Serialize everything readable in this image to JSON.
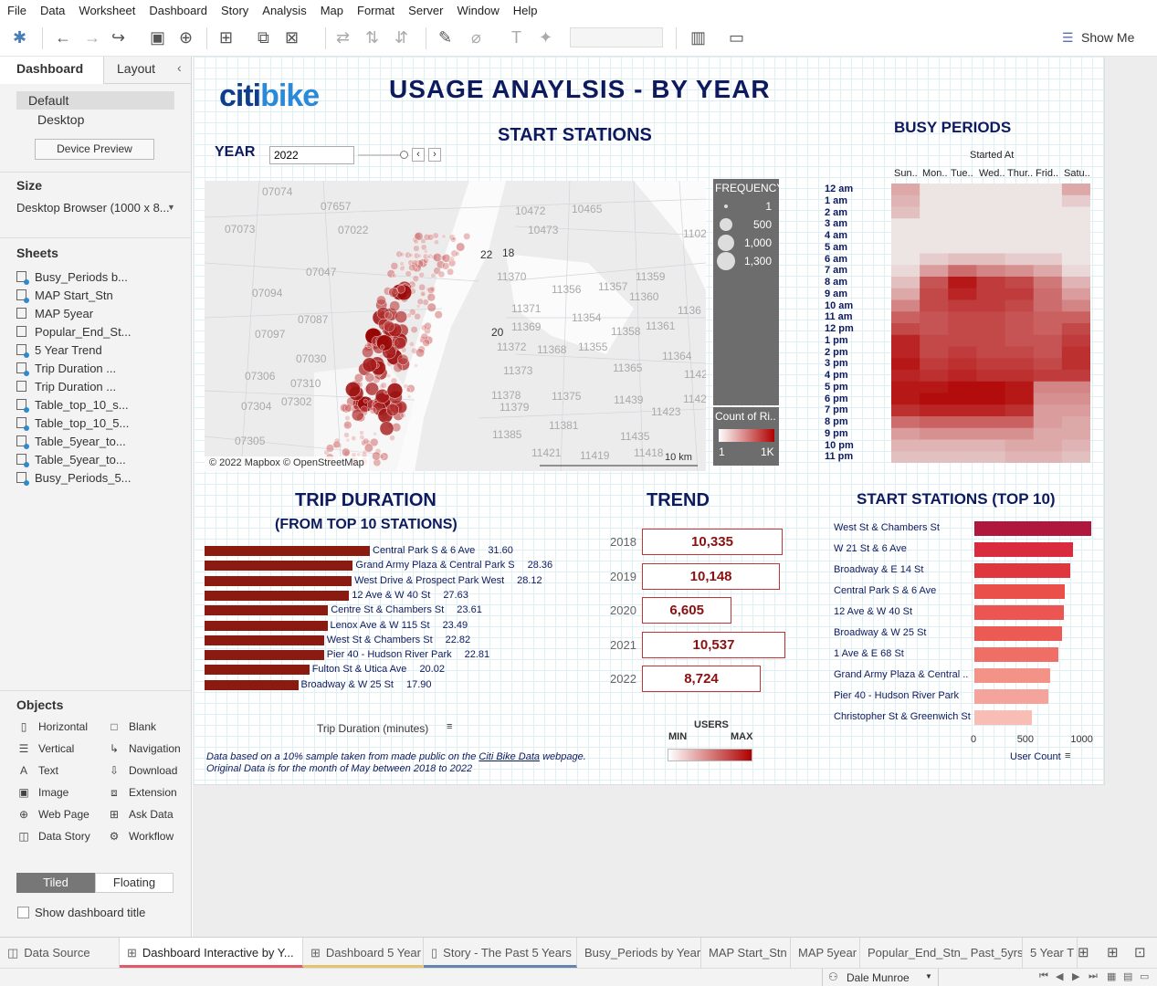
{
  "menu": [
    "File",
    "Data",
    "Worksheet",
    "Dashboard",
    "Story",
    "Analysis",
    "Map",
    "Format",
    "Server",
    "Window",
    "Help"
  ],
  "toolbar": {
    "show_me": "Show Me"
  },
  "left": {
    "tab_dashboard": "Dashboard",
    "tab_layout": "Layout",
    "device_default": "Default",
    "device_desktop": "Desktop",
    "device_preview": "Device Preview",
    "size_title": "Size",
    "size_value": "Desktop Browser (1000 x 8...",
    "sheets_title": "Sheets",
    "sheets": [
      "Busy_Periods b...",
      "MAP Start_Stn",
      "MAP 5year",
      "Popular_End_St...",
      "5 Year Trend",
      "Trip Duration ...",
      "Trip Duration ...",
      "Table_top_10_s...",
      "Table_top_10_5...",
      "Table_5year_to...",
      "Table_5year_to...",
      "Busy_Periods_5..."
    ],
    "objects_title": "Objects",
    "objects": [
      "Horizontal",
      "Blank",
      "Vertical",
      "Navigation",
      "Text",
      "Download",
      "Image",
      "Extension",
      "Web Page",
      "Ask Data",
      "Data Story",
      "Workflow"
    ],
    "tiled": "Tiled",
    "floating": "Floating",
    "show_title": "Show dashboard title"
  },
  "dashboard": {
    "logo_a": "citi",
    "logo_b": "bike",
    "title": "USAGE ANAYLSIS - BY YEAR",
    "start_stations": "START STATIONS",
    "year_label": "YEAR",
    "year_value": "2022",
    "busy_title": "BUSY PERIODS",
    "started_at": "Started At",
    "days": [
      "Sun..",
      "Mon..",
      "Tue..",
      "Wed..",
      "Thur..",
      "Frid..",
      "Satu.."
    ],
    "hours": [
      "12 am",
      "1 am",
      "2 am",
      "3 am",
      "4 am",
      "5 am",
      "6 am",
      "7 am",
      "8 am",
      "9 am",
      "10 am",
      "11 am",
      "12 pm",
      "1 pm",
      "2 pm",
      "3 pm",
      "4 pm",
      "5 pm",
      "6 pm",
      "7 pm",
      "8 pm",
      "9 pm",
      "10 pm",
      "11 pm"
    ],
    "map_credit": "© 2022 Mapbox © OpenStreetMap",
    "map_scale": "10 km",
    "map_labels": [
      "07074",
      "07657",
      "10472",
      "10465",
      "07073",
      "07022",
      "10473",
      "1102",
      "22",
      "18",
      "11370",
      "07047",
      "11359",
      "11356",
      "11357",
      "07094",
      "11371",
      "11360",
      "07087",
      "11354",
      "1136",
      "11369",
      "11361",
      "07097",
      "20",
      "11368",
      "11355",
      "11358",
      "07030",
      "11372",
      "11364",
      "11373",
      "11365",
      "07306",
      "07310",
      "11378",
      "11375",
      "1142",
      "07304",
      "07302",
      "11379",
      "11439",
      "1142",
      "11423",
      "11385",
      "11381",
      "11435",
      "07305",
      "11421",
      "11419",
      "11418"
    ],
    "freq_title": "FREQUENCY",
    "freq_items": [
      "1",
      "500",
      "1,000",
      "1,300"
    ],
    "count_title": "Count of Ri..",
    "count_min": "1",
    "count_max": "1K",
    "trip_title": "TRIP DURATION",
    "trip_sub": "(FROM TOP 10 STATIONS)",
    "trip_axis": "Trip Duration  (minutes)",
    "trend_title": "TREND",
    "users": "USERS",
    "min": "MIN",
    "max": "MAX",
    "top10_title": "START STATIONS (TOP 10)",
    "top10_axis": "User Count",
    "top10_ticks": [
      "0",
      "500",
      "1000"
    ],
    "note1_a": "Data based on a 10% sample taken from made public on the ",
    "note1_link": "Citi Bike Data",
    "note1_b": " webpage.",
    "note2": "Original Data is for the month of May between 2018 to 2022"
  },
  "chart_data": [
    {
      "type": "bar",
      "title": "TRIP DURATION",
      "subtitle": "(FROM TOP 10 STATIONS)",
      "xlabel": "Trip Duration  (minutes)",
      "categories": [
        "Central Park S & 6 Ave",
        "Grand Army Plaza & Central Park S",
        "West Drive & Prospect Park West",
        "12 Ave & W 40 St",
        "Centre St & Chambers St",
        "Lenox Ave & W 115 St",
        "West St & Chambers St",
        "Pier 40 - Hudson River Park",
        "Fulton St & Utica Ave",
        "Broadway & W 25 St"
      ],
      "values": [
        31.6,
        28.36,
        28.12,
        27.63,
        23.61,
        23.49,
        22.82,
        22.81,
        20.02,
        17.9
      ],
      "value_labels": [
        "31.60",
        "28.36",
        "28.12",
        "27.63",
        "23.61",
        "23.49",
        "22.82",
        "22.81",
        "20.02",
        "17.90"
      ]
    },
    {
      "type": "table",
      "title": "TREND",
      "categories": [
        "2018",
        "2019",
        "2020",
        "2021",
        "2022"
      ],
      "values": [
        10335,
        10148,
        6605,
        10537,
        8724
      ],
      "value_labels": [
        "10,335",
        "10,148",
        "6,605",
        "10,537",
        "8,724"
      ]
    },
    {
      "type": "bar",
      "title": "START STATIONS (TOP 10)",
      "xlabel": "User Count",
      "xlim": [
        0,
        1100
      ],
      "categories": [
        "West St & Chambers St",
        "W 21 St & 6 Ave",
        "Broadway & E 14 St",
        "Central Park S & 6 Ave",
        "12 Ave & W 40 St",
        "Broadway & W 25 St",
        "1 Ave & E 68 St",
        "Grand Army Plaza & Central ..",
        "Pier 40 - Hudson River Park",
        "Christopher St & Greenwich St"
      ],
      "values": [
        1090,
        920,
        890,
        840,
        830,
        820,
        780,
        710,
        690,
        540
      ]
    },
    {
      "type": "heatmap",
      "title": "BUSY PERIODS",
      "xlabel": "Started At",
      "x": [
        "Sun..",
        "Mon..",
        "Tue..",
        "Wed..",
        "Thur..",
        "Frid..",
        "Satu.."
      ],
      "y": [
        "12 am",
        "1 am",
        "2 am",
        "3 am",
        "4 am",
        "5 am",
        "6 am",
        "7 am",
        "8 am",
        "9 am",
        "10 am",
        "11 am",
        "12 pm",
        "1 pm",
        "2 pm",
        "3 pm",
        "4 pm",
        "5 pm",
        "6 pm",
        "7 pm",
        "8 pm",
        "9 pm",
        "10 pm",
        "11 pm"
      ],
      "values": [
        [
          0.3,
          0.05,
          0.05,
          0.05,
          0.05,
          0.05,
          0.3
        ],
        [
          0.25,
          0.05,
          0.05,
          0.05,
          0.05,
          0.05,
          0.15
        ],
        [
          0.2,
          0.05,
          0.05,
          0.05,
          0.05,
          0.05,
          0.05
        ],
        [
          0.05,
          0.05,
          0.05,
          0.05,
          0.05,
          0.05,
          0.05
        ],
        [
          0.05,
          0.05,
          0.05,
          0.05,
          0.05,
          0.05,
          0.05
        ],
        [
          0.05,
          0.05,
          0.05,
          0.05,
          0.05,
          0.05,
          0.05
        ],
        [
          0.05,
          0.15,
          0.2,
          0.2,
          0.15,
          0.15,
          0.05
        ],
        [
          0.1,
          0.35,
          0.55,
          0.45,
          0.4,
          0.3,
          0.1
        ],
        [
          0.2,
          0.65,
          0.9,
          0.75,
          0.7,
          0.5,
          0.25
        ],
        [
          0.3,
          0.7,
          0.85,
          0.75,
          0.75,
          0.55,
          0.35
        ],
        [
          0.45,
          0.7,
          0.75,
          0.75,
          0.7,
          0.55,
          0.45
        ],
        [
          0.6,
          0.65,
          0.7,
          0.7,
          0.65,
          0.6,
          0.6
        ],
        [
          0.7,
          0.65,
          0.7,
          0.7,
          0.65,
          0.6,
          0.7
        ],
        [
          0.85,
          0.7,
          0.7,
          0.7,
          0.65,
          0.65,
          0.75
        ],
        [
          0.85,
          0.7,
          0.75,
          0.7,
          0.7,
          0.65,
          0.8
        ],
        [
          0.9,
          0.75,
          0.8,
          0.75,
          0.75,
          0.7,
          0.8
        ],
        [
          0.85,
          0.8,
          0.85,
          0.8,
          0.8,
          0.75,
          0.75
        ],
        [
          0.9,
          0.9,
          0.95,
          0.95,
          0.9,
          0.45,
          0.45
        ],
        [
          0.9,
          0.95,
          0.95,
          0.95,
          0.9,
          0.4,
          0.4
        ],
        [
          0.8,
          0.85,
          0.85,
          0.85,
          0.8,
          0.35,
          0.35
        ],
        [
          0.55,
          0.6,
          0.6,
          0.6,
          0.6,
          0.35,
          0.3
        ],
        [
          0.35,
          0.4,
          0.4,
          0.4,
          0.4,
          0.3,
          0.3
        ],
        [
          0.25,
          0.25,
          0.25,
          0.25,
          0.3,
          0.3,
          0.25
        ],
        [
          0.2,
          0.2,
          0.2,
          0.2,
          0.25,
          0.25,
          0.2
        ]
      ]
    }
  ],
  "tabs": [
    "Data Source",
    "Dashboard Interactive by Y...",
    "Dashboard 5 Year",
    "Story - The Past 5 Years",
    "Busy_Periods by Year",
    "MAP Start_Stn",
    "MAP 5year",
    "Popular_End_Stn_ Past_5yrs",
    "5 Year T"
  ],
  "status": {
    "user": "Dale Munroe"
  },
  "colors": {
    "navy": "#0e1a5e",
    "bar_dark": "#8b1a10",
    "heat_max": "#b00000",
    "panel": "#6d6d6d"
  }
}
